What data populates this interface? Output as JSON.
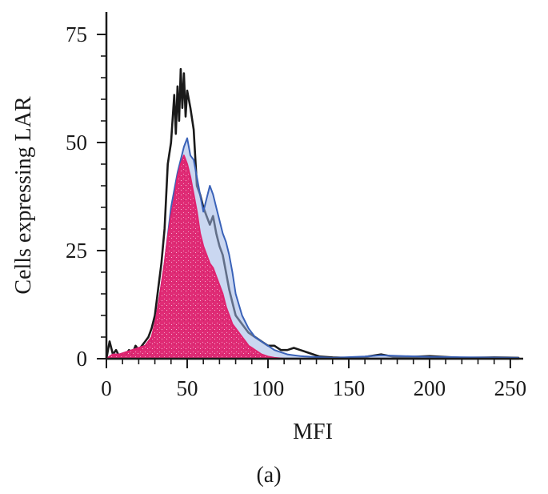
{
  "chart_data": {
    "type": "area",
    "xlabel": "MFI",
    "ylabel": "Cells expressing LAR",
    "panel_label": "(a)",
    "xlim": [
      0,
      255
    ],
    "ylim": [
      0,
      75
    ],
    "xticks": [
      0,
      50,
      100,
      150,
      200,
      250
    ],
    "yticks": [
      0,
      25,
      50,
      75
    ],
    "grid": false,
    "series": [
      {
        "color": "#1a1a1a",
        "x": [
          0,
          2,
          4,
          6,
          8,
          10,
          12,
          14,
          16,
          18,
          20,
          22,
          24,
          26,
          28,
          30,
          32,
          34,
          36,
          38,
          40,
          42,
          43,
          44,
          45,
          46,
          47,
          48,
          49,
          50,
          52,
          54,
          56,
          58,
          60,
          62,
          64,
          66,
          68,
          70,
          72,
          74,
          76,
          78,
          80,
          84,
          88,
          92,
          96,
          100,
          104,
          108,
          112,
          116,
          120,
          124,
          128,
          132,
          140,
          150,
          160,
          170,
          180,
          200,
          220,
          240,
          255
        ],
        "y": [
          0,
          4,
          1,
          2,
          0.5,
          1,
          1,
          2,
          1,
          3,
          2,
          3,
          4,
          5,
          7,
          10,
          16,
          22,
          30,
          45,
          50,
          61,
          52,
          63,
          55,
          67,
          58,
          66,
          56,
          62,
          58,
          53,
          40,
          38,
          35,
          33,
          31,
          33,
          29,
          26,
          24,
          20,
          16,
          13,
          10,
          8,
          6,
          5,
          4,
          3,
          3,
          2,
          2,
          2.5,
          2,
          1.5,
          1,
          0.5,
          0.3,
          0.2,
          0.4,
          1,
          0.3,
          0.6,
          0.2,
          0.3,
          0.2
        ]
      },
      {
        "color": "#3a62b8",
        "x": [
          0,
          4,
          8,
          12,
          16,
          20,
          24,
          28,
          32,
          36,
          40,
          44,
          48,
          50,
          52,
          54,
          56,
          58,
          60,
          62,
          64,
          66,
          68,
          70,
          72,
          74,
          76,
          78,
          80,
          84,
          88,
          92,
          96,
          100,
          104,
          108,
          112,
          116,
          120,
          124,
          128,
          140,
          160,
          170,
          200,
          230,
          255
        ],
        "y": [
          0,
          1,
          1,
          1.5,
          2,
          2.5,
          3,
          4,
          12,
          22,
          35,
          43,
          49,
          51,
          47,
          46,
          42,
          38,
          34,
          37,
          40,
          38,
          35,
          32,
          29,
          27,
          24,
          20,
          15,
          10,
          7,
          5,
          4,
          3,
          2,
          1.5,
          1,
          0.8,
          0.6,
          0.5,
          0.4,
          0.2,
          0.5,
          0.8,
          0.4,
          0.3,
          0.2
        ]
      },
      {
        "color": "#e0226e",
        "x": [
          0,
          4,
          8,
          12,
          16,
          20,
          24,
          28,
          30,
          32,
          34,
          36,
          38,
          40,
          42,
          44,
          46,
          48,
          50,
          52,
          54,
          56,
          58,
          60,
          62,
          64,
          66,
          68,
          70,
          72,
          74,
          76,
          78,
          80,
          82,
          84,
          86,
          88,
          90,
          92,
          96,
          100,
          104,
          110,
          255
        ],
        "y": [
          0,
          1,
          1,
          1.5,
          2,
          2.5,
          3,
          5,
          8,
          12,
          17,
          22,
          28,
          33,
          37,
          42,
          45,
          47,
          45,
          42,
          38,
          34,
          29,
          26,
          24,
          22,
          21,
          19,
          17,
          15,
          12,
          10,
          8,
          7,
          6,
          5,
          4,
          3,
          2.5,
          2,
          1,
          0.5,
          0.2,
          0,
          0
        ]
      }
    ]
  }
}
